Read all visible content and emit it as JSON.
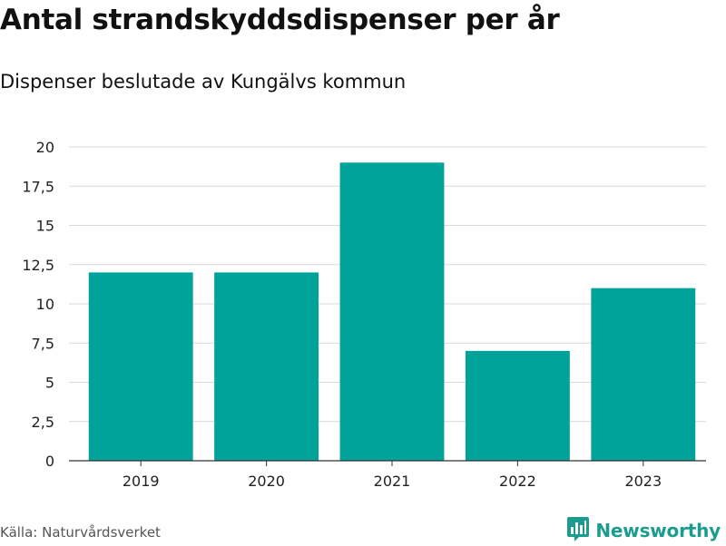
{
  "header": {
    "title": "Antal strandskyddsdispenser per år",
    "subtitle": "Dispenser beslutade av Kungälvs kommun"
  },
  "footer": {
    "source": "Källa: Naturvårdsverket",
    "brand": "Newsworthy",
    "brand_icon": "bar-chart-logo-icon"
  },
  "colors": {
    "bar": "#00a39a",
    "brand": "#1a9c8f"
  },
  "chart_data": {
    "type": "bar",
    "title": "Antal strandskyddsdispenser per år",
    "subtitle": "Dispenser beslutade av Kungälvs kommun",
    "xlabel": "",
    "ylabel": "",
    "categories": [
      "2019",
      "2020",
      "2021",
      "2022",
      "2023"
    ],
    "values": [
      12,
      12,
      19,
      7,
      11
    ],
    "ylim": [
      0,
      20
    ],
    "yticks": [
      0,
      2.5,
      5,
      7.5,
      10,
      12.5,
      15,
      17.5,
      20
    ],
    "ytick_labels": [
      "0",
      "2,5",
      "5",
      "7,5",
      "10",
      "12,5",
      "15",
      "17,5",
      "20"
    ],
    "grid": true
  }
}
